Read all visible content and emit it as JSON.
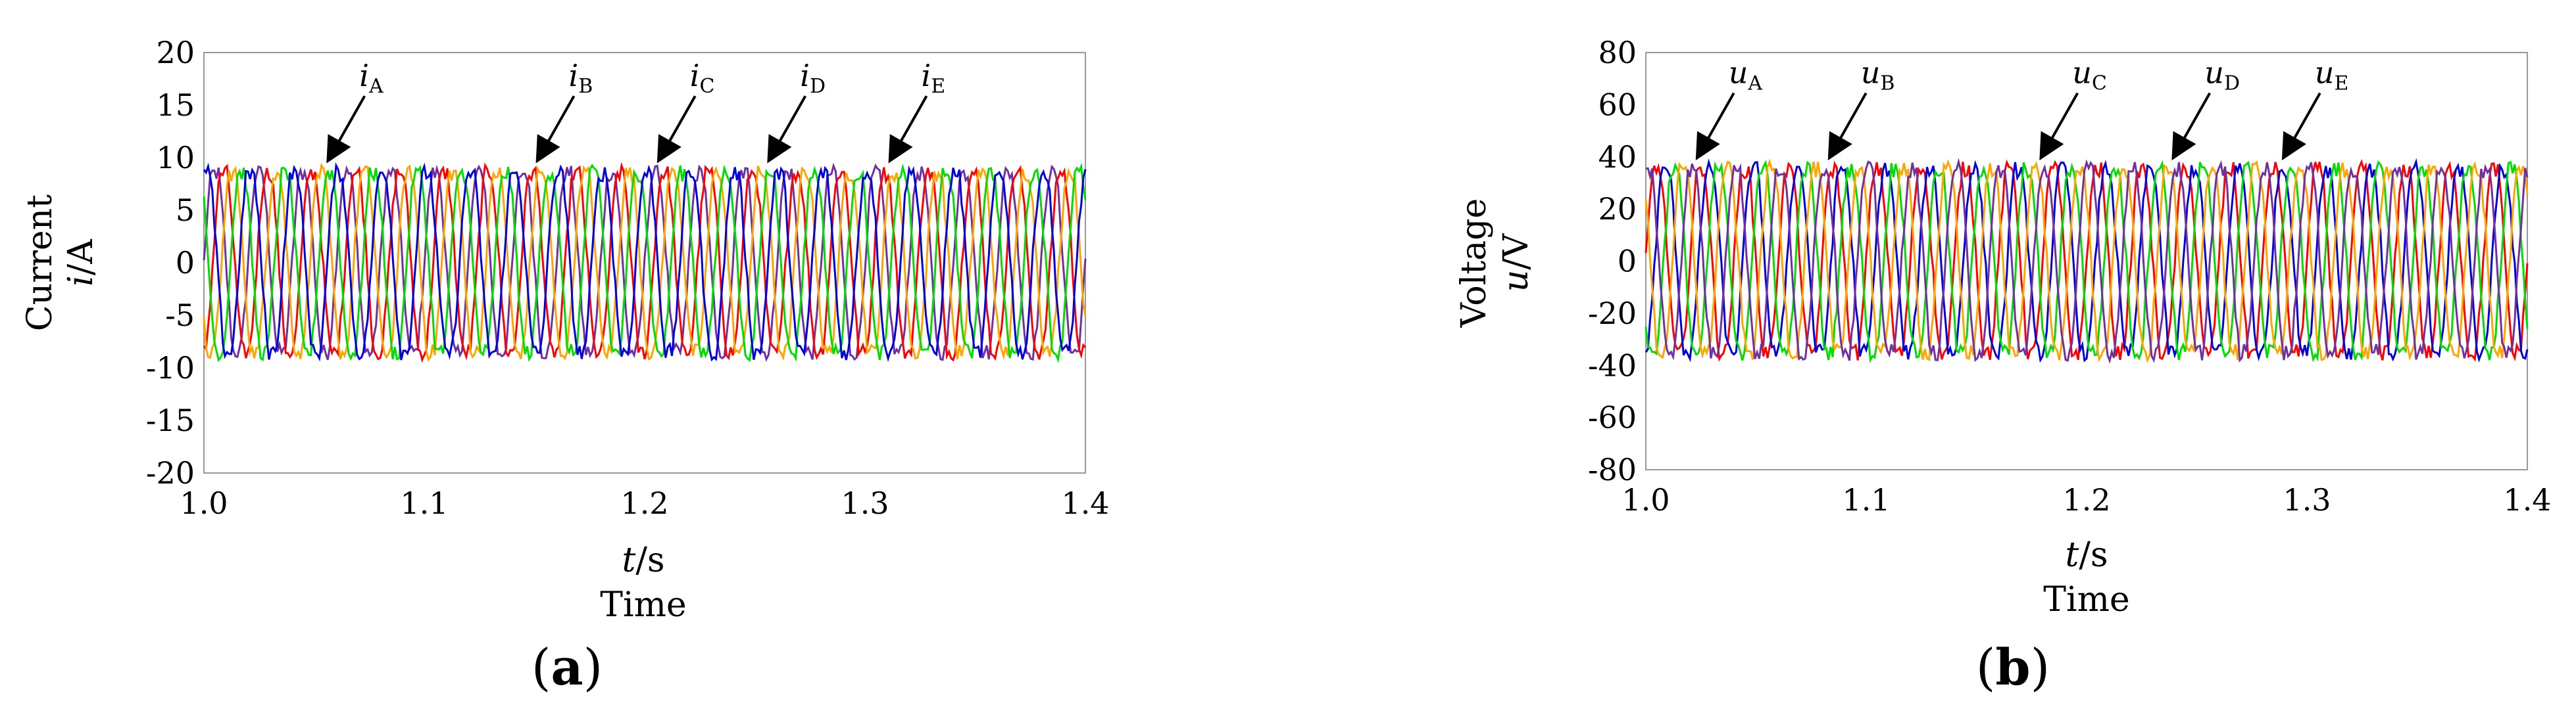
{
  "chart_data": [
    {
      "panel_label": "a",
      "type": "line",
      "xlabel": "t/s",
      "xlabel_var": "t",
      "xlabel_unit": "/s",
      "xlabel2": "Time",
      "ylabel": "Current",
      "ylabel_var": "i",
      "ylabel_unit": "/A",
      "xlim": [
        1.0,
        1.4
      ],
      "ylim": [
        -20,
        20
      ],
      "xticks": [
        "1.0",
        "1.1",
        "1.2",
        "1.3",
        "1.4"
      ],
      "yticks": [
        "20",
        "15",
        "10",
        "5",
        "0",
        "-5",
        "-10",
        "-15",
        "-20"
      ],
      "waveform": {
        "frequency_hz": 50,
        "amplitude": 8.5,
        "phase_step_deg": 72
      },
      "series": [
        {
          "var": "i",
          "sub": "A",
          "color": "#7030A0"
        },
        {
          "var": "i",
          "sub": "B",
          "color": "#FF0000"
        },
        {
          "var": "i",
          "sub": "C",
          "color": "#FFA500"
        },
        {
          "var": "i",
          "sub": "D",
          "color": "#00DD00"
        },
        {
          "var": "i",
          "sub": "E",
          "color": "#0000DD"
        }
      ],
      "annotations": [
        {
          "var": "i",
          "sub": "A",
          "x": 1.055,
          "y": 9.3
        },
        {
          "var": "i",
          "sub": "B",
          "x": 1.15,
          "y": 9.3
        },
        {
          "var": "i",
          "sub": "C",
          "x": 1.205,
          "y": 9.3
        },
        {
          "var": "i",
          "sub": "D",
          "x": 1.255,
          "y": 9.3
        },
        {
          "var": "i",
          "sub": "E",
          "x": 1.31,
          "y": 9.3
        }
      ]
    },
    {
      "panel_label": "b",
      "type": "line",
      "xlabel": "t/s",
      "xlabel_var": "t",
      "xlabel_unit": "/s",
      "xlabel2": "Time",
      "ylabel": "Voltage",
      "ylabel_var": "u",
      "ylabel_unit": "/V",
      "xlim": [
        1.0,
        1.4
      ],
      "ylim": [
        -80,
        80
      ],
      "xticks": [
        "1.0",
        "1.1",
        "1.2",
        "1.3",
        "1.4"
      ],
      "yticks": [
        "80",
        "60",
        "40",
        "20",
        "0",
        "-20",
        "-40",
        "-60",
        "-80"
      ],
      "waveform": {
        "frequency_hz": 50,
        "amplitude": 35,
        "phase_step_deg": 72
      },
      "series": [
        {
          "var": "u",
          "sub": "A",
          "color": "#FF0000"
        },
        {
          "var": "u",
          "sub": "B",
          "color": "#0000DD"
        },
        {
          "var": "u",
          "sub": "C",
          "color": "#00DD00"
        },
        {
          "var": "u",
          "sub": "D",
          "color": "#FFA500"
        },
        {
          "var": "u",
          "sub": "E",
          "color": "#7030A0"
        }
      ],
      "annotations": [
        {
          "var": "u",
          "sub": "A",
          "x": 1.022,
          "y": 38
        },
        {
          "var": "u",
          "sub": "B",
          "x": 1.082,
          "y": 38
        },
        {
          "var": "u",
          "sub": "C",
          "x": 1.178,
          "y": 38
        },
        {
          "var": "u",
          "sub": "D",
          "x": 1.238,
          "y": 38
        },
        {
          "var": "u",
          "sub": "E",
          "x": 1.288,
          "y": 38
        }
      ]
    }
  ]
}
